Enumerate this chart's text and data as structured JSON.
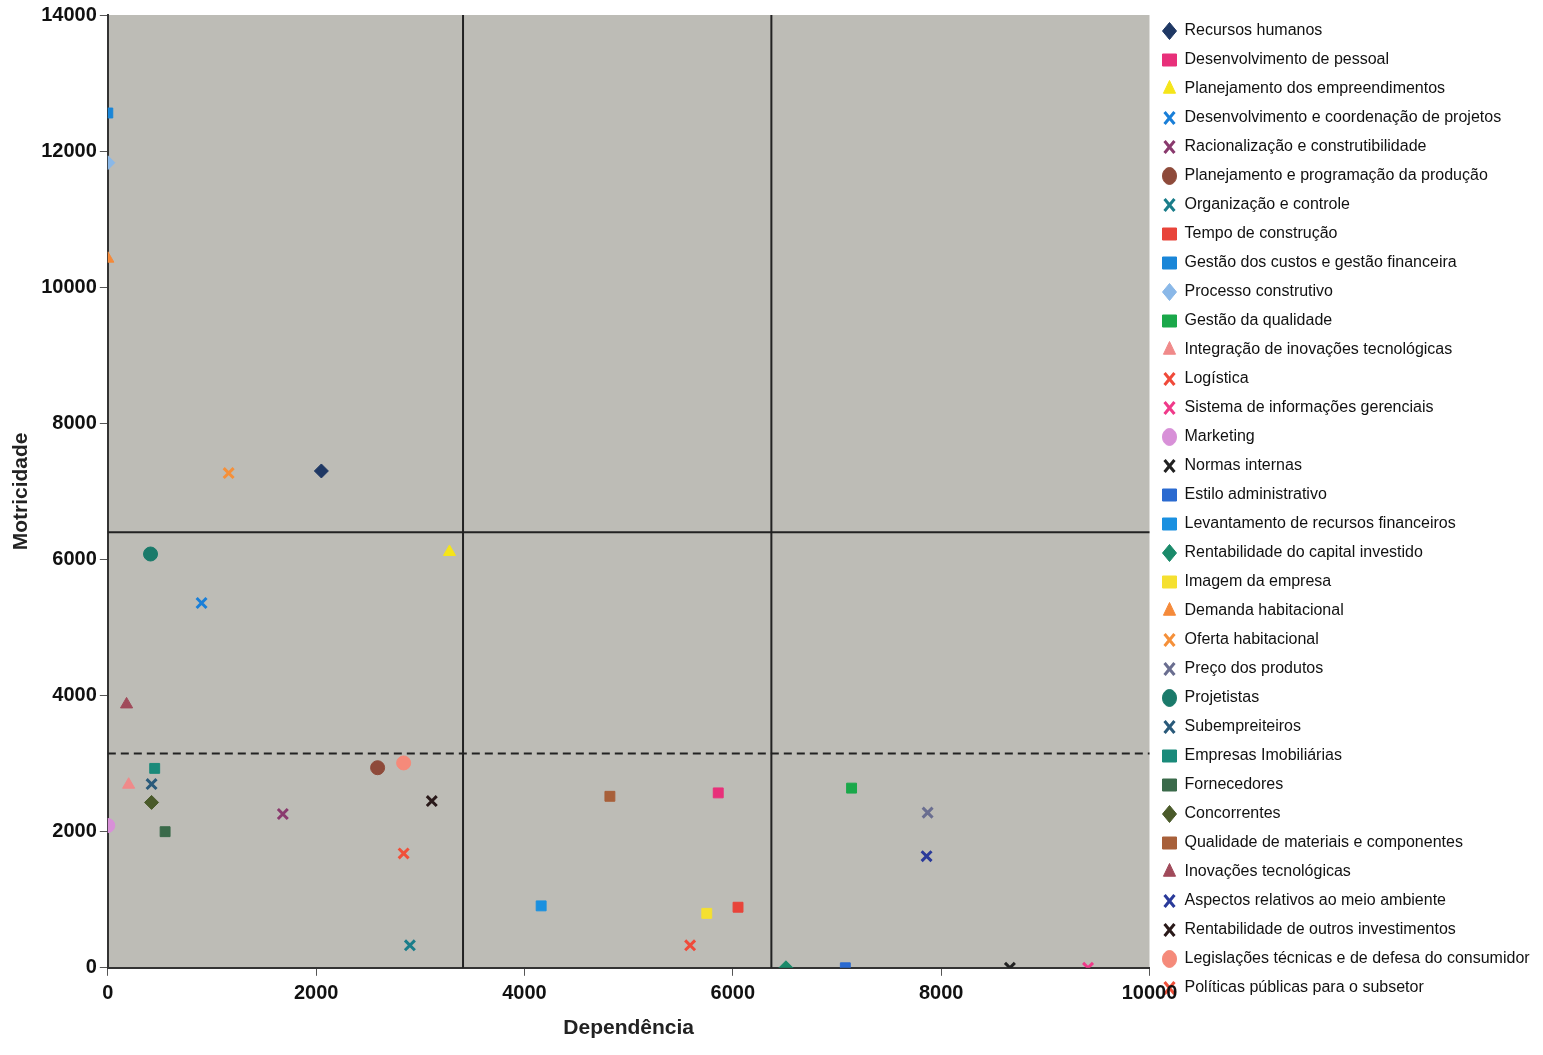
{
  "chart_data": {
    "type": "scatter",
    "xlabel": "Dependência",
    "ylabel": "Motricidade",
    "xlim": [
      0,
      10000
    ],
    "ylim": [
      0,
      14000
    ],
    "xticks": [
      0,
      2000,
      4000,
      6000,
      8000,
      10000
    ],
    "yticks": [
      0,
      2000,
      4000,
      6000,
      8000,
      10000,
      12000,
      14000
    ],
    "grid": false,
    "legend": "right",
    "ref_lines": [
      {
        "axis": "x",
        "value": 3410,
        "color": "#222222",
        "line_style": "solid"
      },
      {
        "axis": "y",
        "value": 3150,
        "color": "#222222",
        "line_style": "dashed"
      },
      {
        "axis": "x",
        "value": 6370,
        "color": "#222222",
        "line_style": "solid"
      },
      {
        "axis": "y",
        "value": 6400,
        "color": "#222222",
        "line_style": "solid"
      }
    ],
    "series": [
      {
        "name": "Recursos humanos",
        "color": "#1f3864",
        "marker": "diamond",
        "x": [
          2050
        ],
        "values": [
          7300
        ]
      },
      {
        "name": "Desenvolvimento de pessoal",
        "color": "#e8307a",
        "marker": "square",
        "x": [
          5860
        ],
        "values": [
          2570
        ]
      },
      {
        "name": "Planejamento dos empreendimentos",
        "color": "#f5e51a",
        "marker": "triangle",
        "x": [
          3280
        ],
        "values": [
          6110
        ]
      },
      {
        "name": "Desenvolvimento e coordenação de projetos",
        "color": "#1a7fd8",
        "marker": "cross",
        "x": [
          900
        ],
        "values": [
          5360
        ]
      },
      {
        "name": "Racionalização e construtibilidade",
        "color": "#8a3a6e",
        "marker": "cross",
        "x": [
          1680
        ],
        "values": [
          2260
        ]
      },
      {
        "name": "Planejamento e programação da produção",
        "color": "#8e4a3a",
        "marker": "circle",
        "x": [
          2590
        ],
        "values": [
          2940
        ]
      },
      {
        "name": "Organização e controle",
        "color": "#1a7d8a",
        "marker": "cross",
        "x": [
          2900
        ],
        "values": [
          330
        ]
      },
      {
        "name": "Tempo de construção",
        "color": "#e8443a",
        "marker": "square",
        "x": [
          6050
        ],
        "values": [
          890
        ]
      },
      {
        "name": "Gestão dos custos e gestão financeira",
        "color": "#1a86d8",
        "marker": "square",
        "x": [
          0
        ],
        "values": [
          12560
        ]
      },
      {
        "name": "Processo construtivo",
        "color": "#8ab8e8",
        "marker": "diamond",
        "x": [
          0
        ],
        "values": [
          11830
        ]
      },
      {
        "name": "Gestão da qualidade",
        "color": "#1aa84a",
        "marker": "square",
        "x": [
          7140
        ],
        "values": [
          2640
        ]
      },
      {
        "name": "Integração de inovações tecnológicas",
        "color": "#f08a8a",
        "marker": "triangle",
        "x": [
          200
        ],
        "values": [
          2690
        ]
      },
      {
        "name": "Logística",
        "color": "#f04a3a",
        "marker": "cross",
        "x": [
          5590
        ],
        "values": [
          330
        ]
      },
      {
        "name": "Sistema de informações gerenciais",
        "color": "#f03a8a",
        "marker": "cross",
        "x": [
          9410
        ],
        "values": [
          0
        ]
      },
      {
        "name": "Marketing",
        "color": "#d890d8",
        "marker": "circle",
        "x": [
          0
        ],
        "values": [
          2090
        ]
      },
      {
        "name": "Normas internas",
        "color": "#222222",
        "marker": "cross",
        "x": [
          8660
        ],
        "values": [
          0
        ]
      },
      {
        "name": "Estilo administrativo",
        "color": "#2a6ad0",
        "marker": "square",
        "x": [
          7080
        ],
        "values": [
          0
        ]
      },
      {
        "name": "Levantamento de recursos financeiros",
        "color": "#1a90e0",
        "marker": "square",
        "x": [
          4160
        ],
        "values": [
          910
        ]
      },
      {
        "name": "Rentabilidade do capital investido",
        "color": "#1a8a6a",
        "marker": "diamond",
        "x": [
          6510
        ],
        "values": [
          0
        ]
      },
      {
        "name": "Imagem da empresa",
        "color": "#f5e030",
        "marker": "square",
        "x": [
          5750
        ],
        "values": [
          800
        ]
      },
      {
        "name": "Demanda habitacional",
        "color": "#f58a3a",
        "marker": "triangle",
        "x": [
          0
        ],
        "values": [
          10420
        ]
      },
      {
        "name": "Oferta habitacional",
        "color": "#f5903a",
        "marker": "cross",
        "x": [
          1160
        ],
        "values": [
          7270
        ]
      },
      {
        "name": "Preço dos produtos",
        "color": "#6a6e90",
        "marker": "cross",
        "x": [
          7870
        ],
        "values": [
          2280
        ]
      },
      {
        "name": "Projetistas",
        "color": "#1a7a6a",
        "marker": "circle",
        "x": [
          410
        ],
        "values": [
          6080
        ]
      },
      {
        "name": "Subempreiteiros",
        "color": "#2a5a7a",
        "marker": "cross",
        "x": [
          420
        ],
        "values": [
          2700
        ]
      },
      {
        "name": "Empresas Imobiliárias",
        "color": "#1a8a7a",
        "marker": "square",
        "x": [
          450
        ],
        "values": [
          2930
        ]
      },
      {
        "name": "Fornecedores",
        "color": "#3a6a4a",
        "marker": "square",
        "x": [
          550
        ],
        "values": [
          2000
        ]
      },
      {
        "name": "Concorrentes",
        "color": "#4a5a2a",
        "marker": "diamond",
        "x": [
          420
        ],
        "values": [
          2430
        ]
      },
      {
        "name": "Qualidade de materiais e componentes",
        "color": "#a8603a",
        "marker": "square",
        "x": [
          4820
        ],
        "values": [
          2520
        ]
      },
      {
        "name": "Inovações tecnológicas",
        "color": "#a04a5a",
        "marker": "triangle",
        "x": [
          180
        ],
        "values": [
          3870
        ]
      },
      {
        "name": "Aspectos relativos ao meio ambiente",
        "color": "#2a3a9a",
        "marker": "cross",
        "x": [
          7860
        ],
        "values": [
          1640
        ]
      },
      {
        "name": "Rentabilidade de outros investimentos",
        "color": "#2a1a1a",
        "marker": "cross",
        "x": [
          3110
        ],
        "values": [
          2450
        ]
      },
      {
        "name": "Legislações técnicas e de defesa do consumidor",
        "color": "#f58a7a",
        "marker": "circle",
        "x": [
          2840
        ],
        "values": [
          3010
        ]
      },
      {
        "name": "Políticas públicas para o subsetor",
        "color": "#f0503a",
        "marker": "cross",
        "x": [
          2840
        ],
        "values": [
          1680
        ]
      }
    ]
  }
}
